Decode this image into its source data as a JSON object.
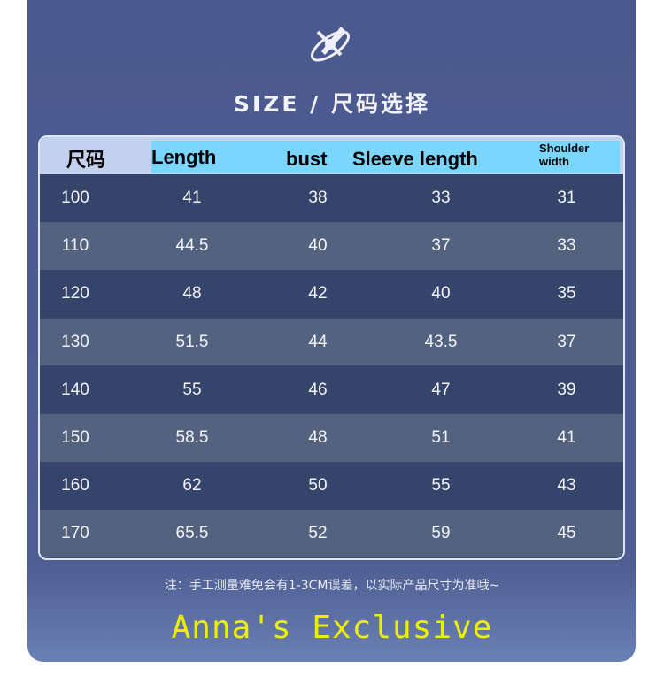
{
  "title": "SIZE / 尺码选择",
  "headers": [
    "尺码",
    "Length",
    "bust",
    "Sleeve length",
    "Shoulder width"
  ],
  "rows": [
    [
      "100",
      "41",
      "38",
      "33",
      "31"
    ],
    [
      "110",
      "44.5",
      "40",
      "37",
      "33"
    ],
    [
      "120",
      "48",
      "42",
      "40",
      "35"
    ],
    [
      "130",
      "51.5",
      "44",
      "43.5",
      "37"
    ],
    [
      "140",
      "55",
      "46",
      "47",
      "39"
    ],
    [
      "150",
      "58.5",
      "48",
      "51",
      "41"
    ],
    [
      "160",
      "62",
      "50",
      "55",
      "43"
    ],
    [
      "170",
      "65.5",
      "52",
      "59",
      "45"
    ]
  ],
  "watermark": "Anna's Exclusive",
  "note": "注：手工测量难免会有1-3CM误差，以实际产品尺寸为准哦~",
  "colors": {
    "panel": "#4b5a8e",
    "header_cyan": "#7bd6ff",
    "watermark": "#f0ee00"
  }
}
